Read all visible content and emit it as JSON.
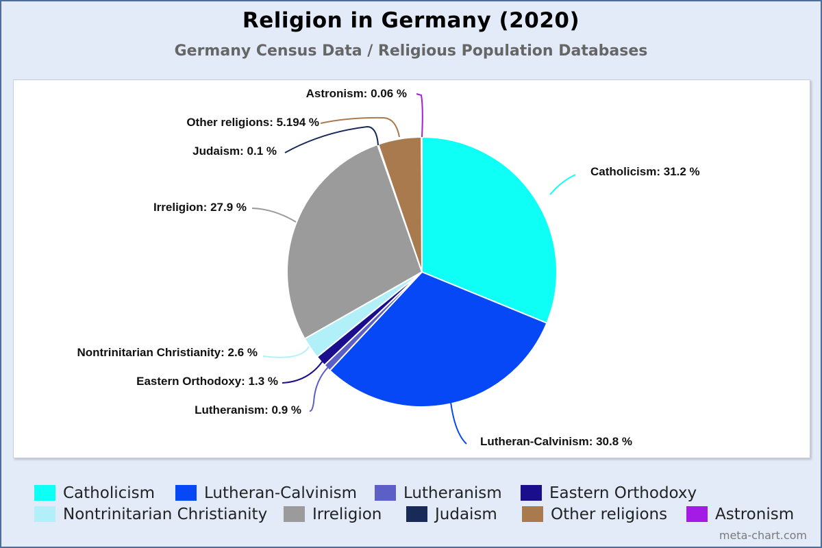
{
  "chart_data": {
    "type": "pie",
    "title": "Religion in Germany (2020)",
    "subtitle": "Germany Census Data / Religious Population Databases",
    "slices": [
      {
        "name": "Catholicism",
        "value": 31.2,
        "label": "Catholicism: 31.2 %",
        "color": "#0dfff5"
      },
      {
        "name": "Lutheran-Calvinism",
        "value": 30.8,
        "label": "Lutheran-Calvinism: 30.8 %",
        "color": "#0648f5"
      },
      {
        "name": "Lutheranism",
        "value": 0.9,
        "label": "Lutheranism: 0.9 %",
        "color": "#5b5fc6"
      },
      {
        "name": "Eastern Orthodoxy",
        "value": 1.3,
        "label": "Eastern Orthodoxy: 1.3 %",
        "color": "#1a0e8c"
      },
      {
        "name": "Nontrinitarian Christianity",
        "value": 2.6,
        "label": "Nontrinitarian Christianity: 2.6 %",
        "color": "#b2f0f9"
      },
      {
        "name": "Irreligion",
        "value": 27.9,
        "label": "Irreligion: 27.9 %",
        "color": "#9b9b9b"
      },
      {
        "name": "Judaism",
        "value": 0.1,
        "label": "Judaism: 0.1 %",
        "color": "#172a58"
      },
      {
        "name": "Other religions",
        "value": 5.194,
        "label": "Other religions: 5.194 %",
        "color": "#a87a4e"
      },
      {
        "name": "Astronism",
        "value": 0.06,
        "label": "Astronism: 0.06 %",
        "color": "#a51be6"
      }
    ],
    "legend_position": "bottom"
  },
  "footer": {
    "credit": "meta-chart.com"
  }
}
